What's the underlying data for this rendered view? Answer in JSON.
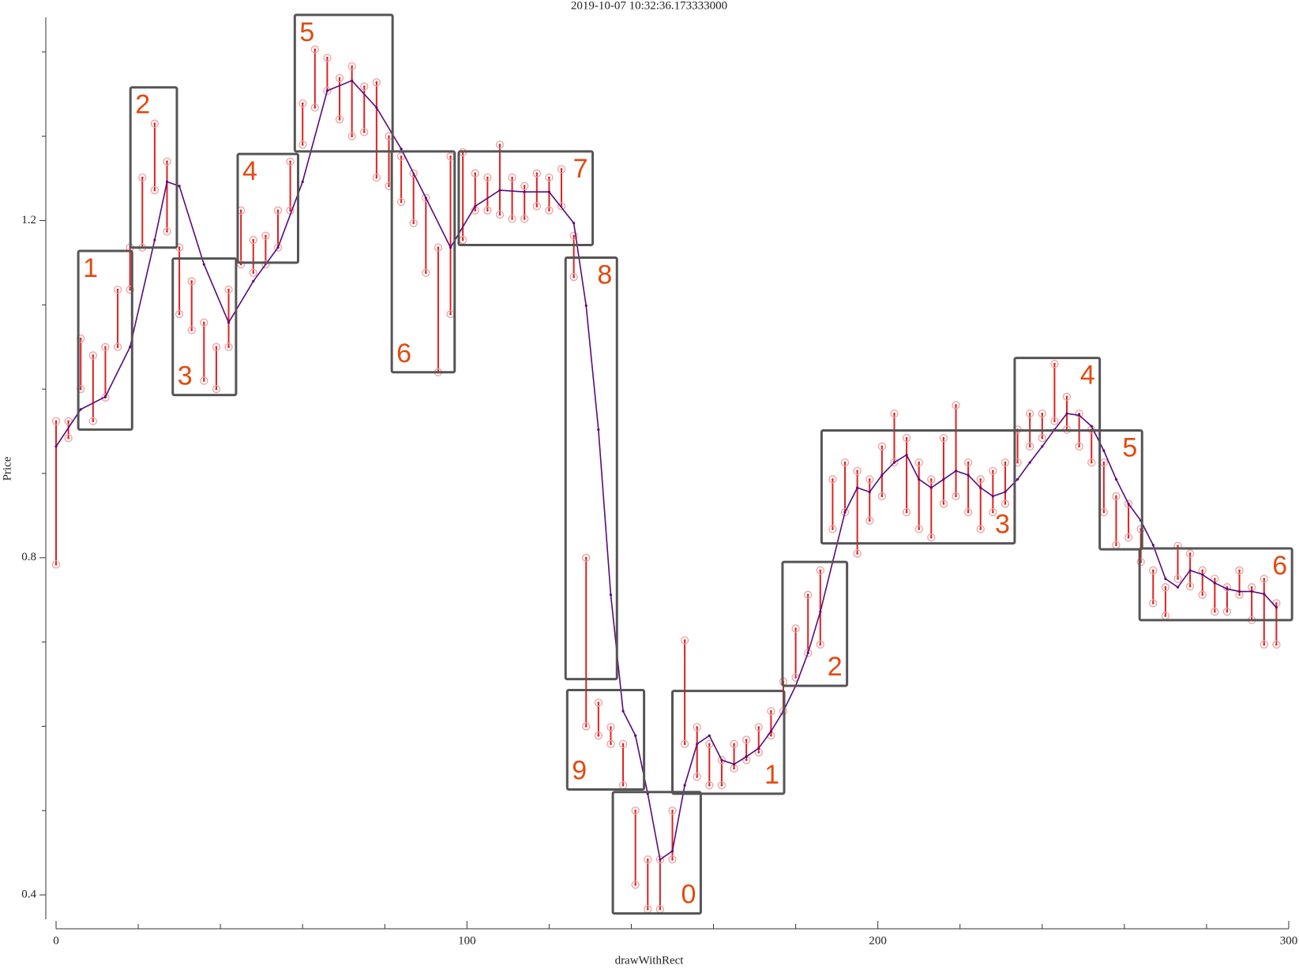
{
  "chart_data": {
    "type": "range",
    "title": "2019-10-07 10:32:36.173333000",
    "xlabel": "drawWithRect",
    "ylabel": "Price",
    "xlim": [
      -2.5,
      300
    ],
    "ylim": [
      0.372,
      1.442
    ],
    "xticks": [
      0,
      100,
      200,
      300
    ],
    "yticks": [
      0.4,
      0.8,
      1.2
    ],
    "xminorticks": [
      20,
      40,
      60,
      80,
      120,
      140,
      160,
      180,
      220,
      240,
      260,
      280
    ],
    "yminorticks": [
      0.5,
      0.6,
      0.7,
      0.9,
      1.0,
      1.1,
      1.3,
      1.4
    ],
    "series": [
      {
        "type": "range",
        "color": "#e02020",
        "x": [
          0,
          3,
          6,
          9,
          12,
          15,
          18,
          21,
          24,
          27,
          30,
          33,
          36,
          39,
          42,
          45,
          48,
          51,
          54,
          57,
          60,
          63,
          66,
          69,
          72,
          75,
          78,
          81,
          84,
          87,
          90,
          93,
          96,
          99,
          102,
          105,
          108,
          111,
          114,
          117,
          120,
          123,
          126,
          129,
          132,
          135,
          138,
          141,
          144,
          147,
          150,
          153,
          156,
          159,
          162,
          165,
          168,
          171,
          174,
          177,
          180,
          183,
          186,
          189,
          192,
          195,
          198,
          201,
          204,
          207,
          210,
          213,
          216,
          219,
          222,
          225,
          228,
          231,
          234,
          237,
          240,
          243,
          246,
          249,
          252,
          255,
          258,
          261,
          264,
          267,
          270,
          273,
          276,
          279,
          282,
          285,
          288,
          291,
          294,
          297
        ],
        "high": [
          0.962,
          0.962,
          1.06,
          1.04,
          1.05,
          1.118,
          1.168,
          1.251,
          1.315,
          1.27,
          1.168,
          1.128,
          1.079,
          1.05,
          1.118,
          1.212,
          1.177,
          1.182,
          1.212,
          1.27,
          1.339,
          1.403,
          1.393,
          1.369,
          1.383,
          1.359,
          1.364,
          1.3,
          1.276,
          1.256,
          1.227,
          1.168,
          1.276,
          1.281,
          1.256,
          1.251,
          1.29,
          1.251,
          1.241,
          1.256,
          1.251,
          1.261,
          1.182,
          0.8,
          0.628,
          0.599,
          0.579,
          0.5,
          0.442,
          0.442,
          0.5,
          0.702,
          0.599,
          0.579,
          0.56,
          0.579,
          0.584,
          0.599,
          0.618,
          0.653,
          0.716,
          0.756,
          0.785,
          0.893,
          0.913,
          0.903,
          0.893,
          0.932,
          0.971,
          0.942,
          0.913,
          0.893,
          0.942,
          0.981,
          0.913,
          0.893,
          0.903,
          0.913,
          0.952,
          0.971,
          0.971,
          1.03,
          0.991,
          0.971,
          0.952,
          0.913,
          0.873,
          0.864,
          0.834,
          0.785,
          0.765,
          0.814,
          0.805,
          0.785,
          0.775,
          0.765,
          0.785,
          0.765,
          0.775,
          0.746
        ],
        "low": [
          0.792,
          0.942,
          1.0,
          0.962,
          0.99,
          1.05,
          1.118,
          1.168,
          1.236,
          1.187,
          1.089,
          1.07,
          1.01,
          1.0,
          1.05,
          1.148,
          1.138,
          1.148,
          1.168,
          1.212,
          1.29,
          1.334,
          1.354,
          1.32,
          1.3,
          1.305,
          1.251,
          1.241,
          1.222,
          1.197,
          1.138,
          1.02,
          1.089,
          1.177,
          1.212,
          1.212,
          1.207,
          1.202,
          1.202,
          1.217,
          1.212,
          1.217,
          1.133,
          0.6,
          0.589,
          0.579,
          0.53,
          0.412,
          0.383,
          0.383,
          0.442,
          0.579,
          0.54,
          0.53,
          0.53,
          0.55,
          0.56,
          0.569,
          0.589,
          0.618,
          0.658,
          0.687,
          0.697,
          0.834,
          0.854,
          0.805,
          0.844,
          0.873,
          0.913,
          0.854,
          0.834,
          0.824,
          0.864,
          0.873,
          0.854,
          0.834,
          0.854,
          0.864,
          0.913,
          0.932,
          0.942,
          0.962,
          0.952,
          0.932,
          0.913,
          0.854,
          0.815,
          0.824,
          0.795,
          0.746,
          0.731,
          0.775,
          0.766,
          0.756,
          0.736,
          0.736,
          0.756,
          0.726,
          0.697,
          0.697
        ]
      },
      {
        "type": "line",
        "color": "#5a0a7a",
        "x": [
          0,
          6,
          12,
          18,
          24,
          27,
          30,
          36,
          42,
          48,
          54,
          60,
          66,
          72,
          78,
          84,
          90,
          96,
          102,
          108,
          114,
          120,
          126,
          129,
          132,
          135,
          138,
          141,
          144,
          147,
          150,
          153,
          156,
          159,
          162,
          165,
          168,
          171,
          174,
          177,
          180,
          183,
          186,
          189,
          192,
          195,
          198,
          201,
          204,
          207,
          210,
          213,
          216,
          219,
          222,
          225,
          228,
          231,
          234,
          237,
          240,
          243,
          246,
          249,
          252,
          255,
          258,
          261,
          264,
          267,
          270,
          273,
          276,
          279,
          282,
          285,
          288,
          291,
          294,
          297
        ],
        "values": [
          0.932,
          0.976,
          0.991,
          1.05,
          1.177,
          1.246,
          1.241,
          1.148,
          1.079,
          1.128,
          1.168,
          1.246,
          1.354,
          1.366,
          1.334,
          1.285,
          1.227,
          1.168,
          1.217,
          1.236,
          1.234,
          1.234,
          1.197,
          1.099,
          0.952,
          0.756,
          0.618,
          0.589,
          0.52,
          0.442,
          0.452,
          0.53,
          0.579,
          0.589,
          0.56,
          0.555,
          0.564,
          0.574,
          0.594,
          0.618,
          0.648,
          0.687,
          0.736,
          0.795,
          0.854,
          0.883,
          0.878,
          0.898,
          0.913,
          0.922,
          0.893,
          0.883,
          0.893,
          0.903,
          0.898,
          0.883,
          0.873,
          0.878,
          0.893,
          0.913,
          0.932,
          0.952,
          0.971,
          0.969,
          0.956,
          0.927,
          0.893,
          0.864,
          0.844,
          0.815,
          0.775,
          0.765,
          0.785,
          0.78,
          0.77,
          0.763,
          0.76,
          0.76,
          0.757,
          0.741
        ]
      }
    ],
    "boxes": [
      {
        "label": "1",
        "x0": 5.4,
        "x1": 18.5,
        "y0": 0.952,
        "y1": 1.164,
        "corner": "top-left"
      },
      {
        "label": "2",
        "x0": 18.1,
        "x1": 29.4,
        "y0": 1.168,
        "y1": 1.358,
        "corner": "top-left"
      },
      {
        "label": "3",
        "x0": 28.4,
        "x1": 43.8,
        "y0": 0.993,
        "y1": 1.155,
        "corner": "bottom-left"
      },
      {
        "label": "4",
        "x0": 44.2,
        "x1": 58.9,
        "y0": 1.15,
        "y1": 1.279,
        "corner": "top-left"
      },
      {
        "label": "5",
        "x0": 58.1,
        "x1": 81.9,
        "y0": 1.282,
        "y1": 1.444,
        "corner": "top-left"
      },
      {
        "label": "6",
        "x0": 81.7,
        "x1": 97.0,
        "y0": 1.02,
        "y1": 1.282,
        "corner": "bottom-left"
      },
      {
        "label": "7",
        "x0": 98.0,
        "x1": 130.6,
        "y0": 1.171,
        "y1": 1.282,
        "corner": "top-right"
      },
      {
        "label": "8",
        "x0": 124.0,
        "x1": 136.5,
        "y0": 0.656,
        "y1": 1.156,
        "corner": "top-right"
      },
      {
        "label": "9",
        "x0": 124.4,
        "x1": 143.1,
        "y0": 0.525,
        "y1": 0.643,
        "corner": "bottom-left"
      },
      {
        "label": "0",
        "x0": 135.5,
        "x1": 156.9,
        "y0": 0.378,
        "y1": 0.522,
        "corner": "bottom-right"
      },
      {
        "label": "1",
        "x0": 150.0,
        "x1": 177.2,
        "y0": 0.52,
        "y1": 0.642,
        "corner": "bottom-right"
      },
      {
        "label": "2",
        "x0": 176.8,
        "x1": 192.5,
        "y0": 0.648,
        "y1": 0.795,
        "corner": "bottom-right"
      },
      {
        "label": "3",
        "x0": 186.3,
        "x1": 233.3,
        "y0": 0.817,
        "y1": 0.951,
        "corner": "bottom-right"
      },
      {
        "label": "4",
        "x0": 233.3,
        "x1": 254.0,
        "y0": 0.951,
        "y1": 1.037,
        "corner": "top-right"
      },
      {
        "label": "5",
        "x0": 254.0,
        "x1": 264.3,
        "y0": 0.81,
        "y1": 0.951,
        "corner": "top-right"
      },
      {
        "label": "6",
        "x0": 263.7,
        "x1": 300.8,
        "y0": 0.726,
        "y1": 0.811,
        "corner": "top-right"
      }
    ]
  }
}
